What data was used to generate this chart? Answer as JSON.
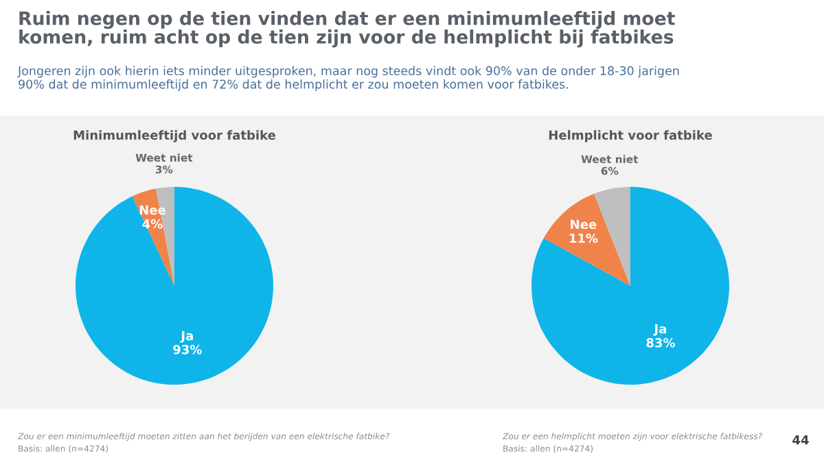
{
  "chart_data": [
    {
      "type": "other",
      "title": "Ruim negen op de tien vinden dat er een minimumleeftijd moet\nkomen, ruim acht op de tien zijn voor de helmplicht bij fatbikes",
      "subtitle": "Jongeren zijn ook hierin iets minder uitgesproken, maar nog steeds vindt ook 90% van de onder 18-30 jarigen\n90% dat de minimumleeftijd en 72% dat de helmplicht er zou moeten komen voor fatbikes.",
      "annotations": [
        "44"
      ]
    },
    {
      "type": "pie",
      "title": "Minimumleeftijd voor fatbike",
      "categories": [
        "Ja",
        "Nee",
        "Weet niet"
      ],
      "values": [
        93,
        4,
        3
      ],
      "colors": [
        "#0fb5e8",
        "#f0834a",
        "#bfbfbf"
      ],
      "value_labels": [
        "93%",
        "4%",
        "3%"
      ],
      "annotations": [
        "Zou er een minimumleeftijd moeten zitten aan het berijden van een elektrische fatbike?",
        "Basis: allen (n=4274)"
      ]
    },
    {
      "type": "pie",
      "title": "Helmplicht voor fatbike",
      "categories": [
        "Ja",
        "Nee",
        "Weet niet"
      ],
      "values": [
        83,
        11,
        6
      ],
      "colors": [
        "#0fb5e8",
        "#f0834a",
        "#bfbfbf"
      ],
      "value_labels": [
        "83%",
        "11%",
        "6%"
      ],
      "annotations": [
        "Zou er een helmplicht moeten zijn voor elektrische fatbikess?",
        "Basis: allen (n=4274)"
      ]
    }
  ]
}
